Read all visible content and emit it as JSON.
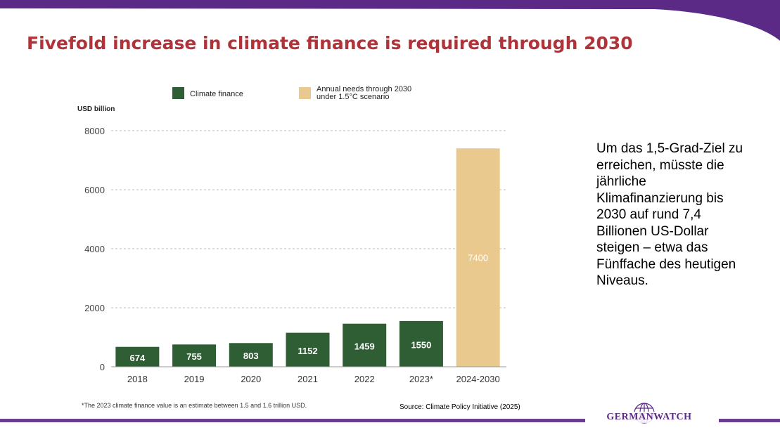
{
  "slide": {
    "title": "Fivefold increase in climate finance is required through 2030",
    "side_text": "Um das 1,5-Grad-Ziel zu erreichen, müsste die jährliche Klimafinanzierung bis 2030 auf rund 7,4 Billionen US-Dollar steigen – etwa das Fünffache des heutigen Niveaus.",
    "footnote": "*The 2023 climate finance value is an estimate between 1.5 and 1.6 trillion USD.",
    "source": "Source: Climate Policy Initiative (2025)",
    "logo_text": "GERMANWATCH",
    "colors": {
      "title": "#b0333a",
      "top_bar": "#5b2a86",
      "bottom_line": "#6a3d8f",
      "logo": "#5b2a86"
    }
  },
  "chart_data": {
    "type": "bar",
    "ylabel": "USD billion",
    "categories": [
      "2018",
      "2019",
      "2020",
      "2021",
      "2022",
      "2023*",
      "2024-2030"
    ],
    "series": [
      {
        "name": "Climate finance",
        "color": "#2f5e34",
        "values": [
          674,
          755,
          803,
          1152,
          1459,
          1550,
          null
        ]
      },
      {
        "name": "Annual needs through 2030 under 1.5°C scenario",
        "color": "#e9c98d",
        "values": [
          null,
          null,
          null,
          null,
          null,
          null,
          7400
        ]
      }
    ],
    "data_labels": [
      "674",
      "755",
      "803",
      "1152",
      "1459",
      "1550",
      "7400"
    ],
    "ylim": [
      0,
      8000
    ],
    "yticks": [
      0,
      2000,
      4000,
      6000,
      8000
    ],
    "grid": true,
    "legend_position": "top"
  }
}
